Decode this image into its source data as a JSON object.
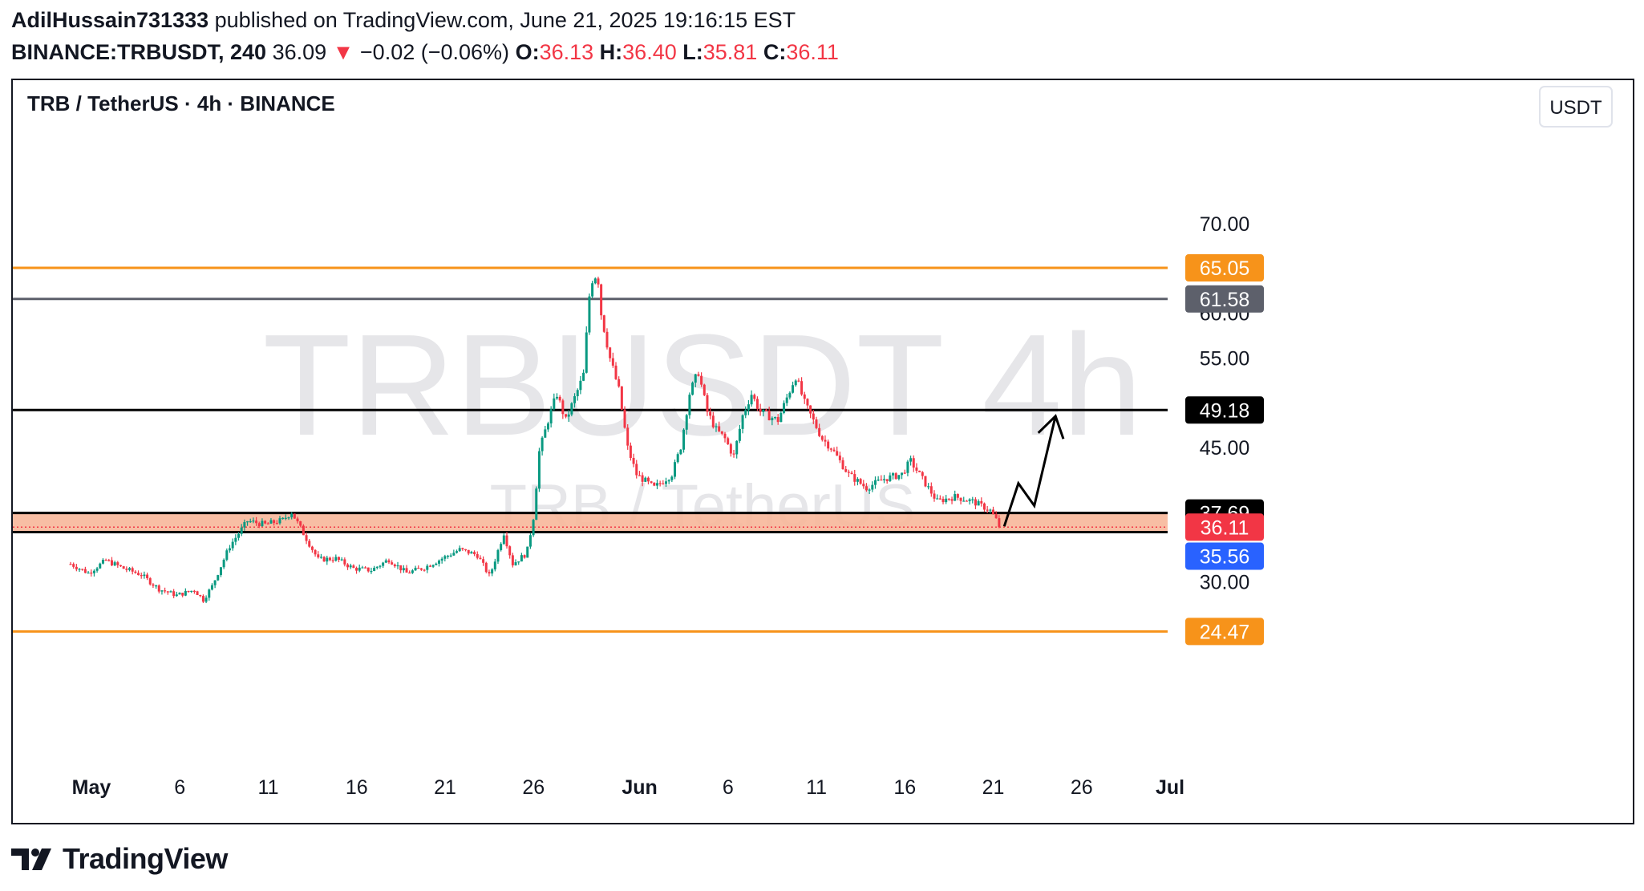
{
  "header": {
    "author": "AdilHussain731333",
    "published_text": "published on TradingView.com, June 21, 2025 19:16:15 EST",
    "symbol": "BINANCE:TRBUSDT, 240",
    "last": "36.09",
    "change": "−0.02 (−0.06%)",
    "o_label": "O:",
    "o": "36.13",
    "h_label": "H:",
    "h": "36.40",
    "l_label": "L:",
    "l": "35.81",
    "c_label": "C:",
    "c": "36.11"
  },
  "legend": {
    "title": "TRB / TetherUS · 4h · BINANCE"
  },
  "currency_button": "USDT",
  "watermark": {
    "line1": "TRBUSDT 4h",
    "line2": "TRB / TetherUS"
  },
  "footer": {
    "brand": "TradingView",
    "logo_icon": "tradingview-logo-icon"
  },
  "colors": {
    "up": "#089981",
    "down": "#f23645",
    "orange": "#f7931a",
    "gray_line": "#5d606b",
    "black": "#000000",
    "zone": "#f7b79a",
    "blue": "#2962ff"
  },
  "chart_data": {
    "type": "candlestick",
    "title": "TRB / TetherUS · 4h · BINANCE",
    "ylim": [
      20,
      76
    ],
    "y_ticks": [
      "30.00",
      "45.00",
      "55.00",
      "60.00",
      "70.00"
    ],
    "x_ticks": [
      {
        "label": "May",
        "day": 0,
        "bold": true
      },
      {
        "label": "6",
        "day": 5
      },
      {
        "label": "11",
        "day": 10
      },
      {
        "label": "16",
        "day": 15
      },
      {
        "label": "21",
        "day": 20
      },
      {
        "label": "26",
        "day": 25
      },
      {
        "label": "Jun",
        "day": 31,
        "bold": true
      },
      {
        "label": "6",
        "day": 36
      },
      {
        "label": "11",
        "day": 41
      },
      {
        "label": "16",
        "day": 46
      },
      {
        "label": "21",
        "day": 51
      },
      {
        "label": "26",
        "day": 56
      },
      {
        "label": "Jul",
        "day": 61,
        "bold": true
      }
    ],
    "levels": [
      {
        "value": 65.05,
        "label": "65.05",
        "color": "#f7931a"
      },
      {
        "value": 61.58,
        "label": "61.58",
        "color": "#5d606b"
      },
      {
        "value": 49.18,
        "label": "49.18",
        "color": "#000000"
      },
      {
        "value": 37.69,
        "label": "37.69",
        "color": "#000000"
      },
      {
        "value": 35.56,
        "label": "35.56",
        "color": "#000000"
      },
      {
        "value": 24.47,
        "label": "24.47",
        "color": "#f7931a"
      }
    ],
    "zone": [
      35.56,
      37.69
    ],
    "last_price": {
      "value": 36.11,
      "label": "36.11"
    },
    "low_marker": {
      "value": 35.56,
      "label": "35.56"
    },
    "close_path": [
      [
        0,
        32.0
      ],
      [
        1,
        31.0
      ],
      [
        2,
        32.4
      ],
      [
        3,
        31.5
      ],
      [
        4,
        30.8
      ],
      [
        5,
        29.2
      ],
      [
        6,
        28.5
      ],
      [
        7,
        29.1
      ],
      [
        7.5,
        28.0
      ],
      [
        8,
        29.5
      ],
      [
        9,
        34.0
      ],
      [
        10,
        36.8
      ],
      [
        11,
        36.4
      ],
      [
        12,
        36.9
      ],
      [
        12.5,
        37.8
      ],
      [
        13,
        36.0
      ],
      [
        14,
        32.5
      ],
      [
        15,
        32.6
      ],
      [
        16,
        31.5
      ],
      [
        17,
        31.3
      ],
      [
        18,
        32.5
      ],
      [
        19,
        31.0
      ],
      [
        20,
        31.6
      ],
      [
        21,
        32.6
      ],
      [
        22,
        33.6
      ],
      [
        23,
        33.0
      ],
      [
        23.7,
        30.6
      ],
      [
        24.5,
        35.5
      ],
      [
        25,
        32.0
      ],
      [
        25.8,
        33.2
      ],
      [
        26.2,
        37.5
      ],
      [
        26.5,
        44.5
      ],
      [
        27,
        48.0
      ],
      [
        27.5,
        51.0
      ],
      [
        28,
        48.0
      ],
      [
        29,
        53.0
      ],
      [
        29.4,
        63.5
      ],
      [
        29.8,
        64.5
      ],
      [
        30,
        60.0
      ],
      [
        30.5,
        55.0
      ],
      [
        31,
        51.5
      ],
      [
        31.5,
        45.0
      ],
      [
        32,
        42.0
      ],
      [
        33,
        40.5
      ],
      [
        34,
        42.0
      ],
      [
        34.5,
        45.0
      ],
      [
        35,
        51.0
      ],
      [
        35.5,
        53.5
      ],
      [
        36,
        49.0
      ],
      [
        36.5,
        47.0
      ],
      [
        37,
        46.0
      ],
      [
        37.5,
        44.0
      ],
      [
        38,
        48.5
      ],
      [
        38.5,
        51.0
      ],
      [
        39,
        49.0
      ],
      [
        40,
        48.0
      ],
      [
        41,
        53.0
      ],
      [
        41.5,
        50.0
      ],
      [
        42,
        48.0
      ],
      [
        42.5,
        46.0
      ],
      [
        43,
        45.0
      ],
      [
        44,
        42.0
      ],
      [
        45,
        40.5
      ],
      [
        46,
        41.5
      ],
      [
        47,
        42.0
      ],
      [
        47.5,
        43.5
      ],
      [
        48,
        42.0
      ],
      [
        49,
        39.0
      ],
      [
        50,
        39.5
      ],
      [
        51,
        39.0
      ],
      [
        52,
        38.0
      ],
      [
        52.6,
        36.11
      ]
    ],
    "forecast_path": [
      [
        52.8,
        36.2
      ],
      [
        53.6,
        41.0
      ],
      [
        54.5,
        38.5
      ],
      [
        55.7,
        48.5
      ]
    ]
  }
}
